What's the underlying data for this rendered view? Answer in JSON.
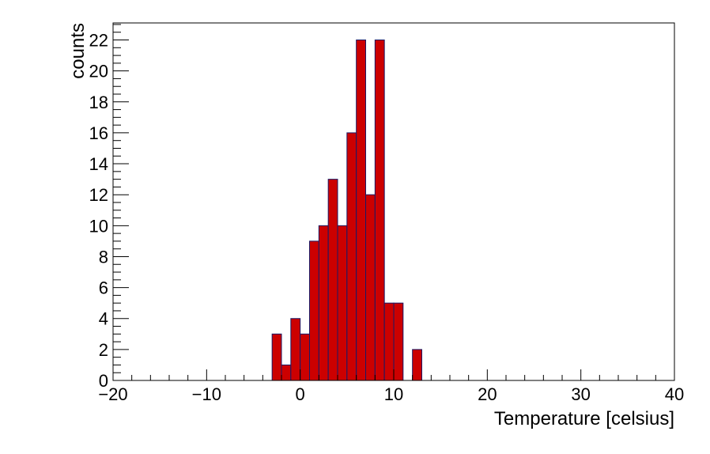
{
  "chart_data": {
    "type": "bar",
    "xlabel": "Temperature [celsius]",
    "ylabel": "counts",
    "xlim": [
      -20,
      40
    ],
    "ylim": [
      0,
      23.1
    ],
    "xticks": [
      "−20",
      "−10",
      "0",
      "10",
      "20",
      "30",
      "40"
    ],
    "xtick_values": [
      -20,
      -10,
      0,
      10,
      20,
      30,
      40
    ],
    "yticks": [
      "0",
      "2",
      "4",
      "6",
      "8",
      "10",
      "12",
      "14",
      "16",
      "18",
      "20",
      "22"
    ],
    "ytick_values": [
      0,
      2,
      4,
      6,
      8,
      10,
      12,
      14,
      16,
      18,
      20,
      22
    ],
    "bin_width": 1,
    "bins": [
      {
        "x": -3,
        "value": 3
      },
      {
        "x": -2,
        "value": 1
      },
      {
        "x": -1,
        "value": 4
      },
      {
        "x": 0,
        "value": 3
      },
      {
        "x": 1,
        "value": 9
      },
      {
        "x": 2,
        "value": 10
      },
      {
        "x": 3,
        "value": 13
      },
      {
        "x": 4,
        "value": 10
      },
      {
        "x": 5,
        "value": 16
      },
      {
        "x": 6,
        "value": 22
      },
      {
        "x": 7,
        "value": 12
      },
      {
        "x": 8,
        "value": 22
      },
      {
        "x": 9,
        "value": 5
      },
      {
        "x": 10,
        "value": 5
      },
      {
        "x": 12,
        "value": 2
      }
    ],
    "fill_color": "#cc0000",
    "edge_color": "#1a1a66"
  }
}
